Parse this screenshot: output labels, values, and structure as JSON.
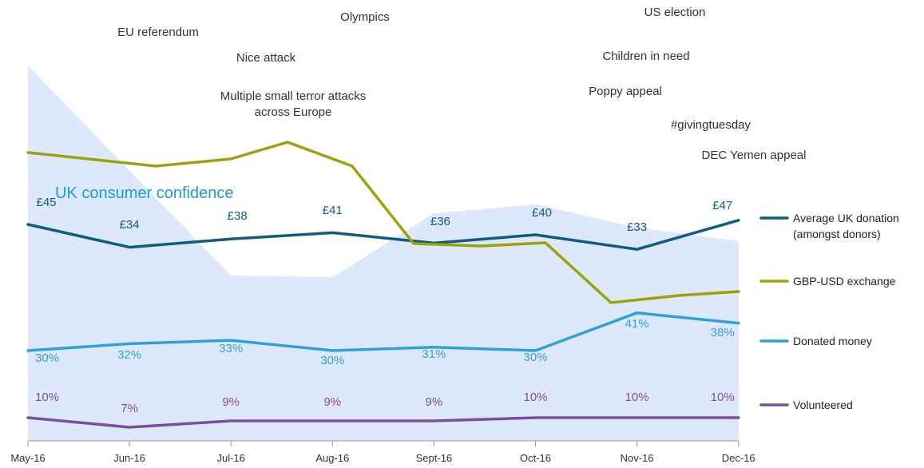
{
  "chart_data": {
    "type": "line",
    "title": "",
    "categories": [
      "May-16",
      "Jun-16",
      "Jul-16",
      "Aug-16",
      "Sept-16",
      "Oct-16",
      "Nov-16",
      "Dec-16"
    ],
    "area": {
      "name": "UK consumer confidence",
      "color": "#dde9fa",
      "label_color": "#1a9ad6"
    },
    "series": [
      {
        "name": "Average UK donation\n(amongst donors)",
        "legend_lines": [
          "Average UK donation",
          "(amongst donors)"
        ],
        "color": "#0e5d80",
        "values": [
          45,
          34,
          38,
          41,
          36,
          40,
          33,
          47
        ],
        "labels": [
          "£45",
          "£34",
          "£38",
          "£41",
          "£36",
          "£40",
          "£33",
          "£47"
        ]
      },
      {
        "name": "GBP-USD exchange",
        "legend_lines": [
          "GBP-USD exchange"
        ],
        "color": "#9da20b",
        "values": [
          1.46,
          1.42,
          1.33,
          1.31,
          1.31,
          1.22,
          1.23,
          1.24
        ],
        "labels": []
      },
      {
        "name": "Donated money",
        "legend_lines": [
          "Donated money"
        ],
        "color": "#2fa2d8",
        "values": [
          30,
          32,
          33,
          30,
          31,
          30,
          41,
          38
        ],
        "labels": [
          "30%",
          "32%",
          "33%",
          "30%",
          "31%",
          "30%",
          "41%",
          "38%"
        ]
      },
      {
        "name": "Volunteered",
        "legend_lines": [
          "Volunteered"
        ],
        "color": "#7b4fa0",
        "values": [
          10,
          7,
          9,
          9,
          9,
          10,
          10,
          10
        ],
        "labels": [
          "10%",
          "7%",
          "9%",
          "9%",
          "9%",
          "10%",
          "10%",
          "10%"
        ]
      }
    ],
    "events": [
      "EU referendum",
      "Olympics",
      "Nice attack",
      "Multiple small terror attacks\nacross Europe",
      "US election",
      "Children in need",
      "Poppy appeal",
      "#givingtuesday",
      "DEC Yemen appeal"
    ],
    "legend_position": "right"
  }
}
